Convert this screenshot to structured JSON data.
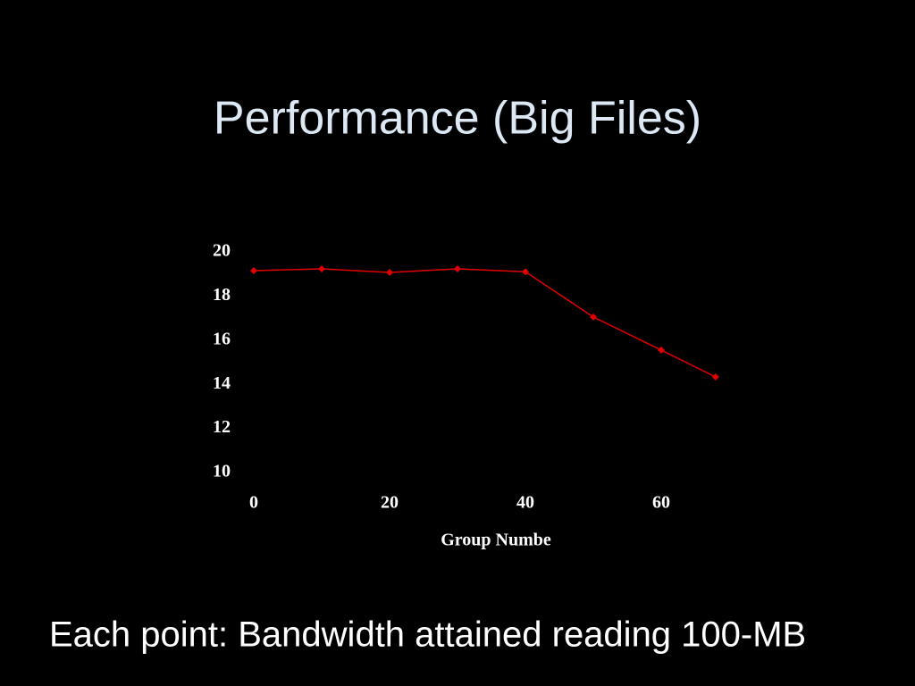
{
  "chart_data": {
    "type": "line",
    "title": "Performance (Big Files)",
    "x_label": "Group Numbe",
    "footnote": "Each point: Bandwidth attained reading 100-MB",
    "x": [
      0,
      10,
      20,
      30,
      40,
      50,
      60,
      68
    ],
    "series": [
      {
        "name": "Bandwidth",
        "color": "#e00000",
        "values": [
          19.15,
          19.23,
          19.07,
          19.23,
          19.1,
          17.05,
          15.55,
          14.33
        ]
      }
    ],
    "xlim": [
      0,
      70
    ],
    "xticks": [
      0,
      20,
      40,
      60
    ],
    "ylim": [
      10,
      20
    ],
    "yticks": [
      10,
      12,
      14,
      16,
      18,
      20
    ],
    "grid": false
  }
}
